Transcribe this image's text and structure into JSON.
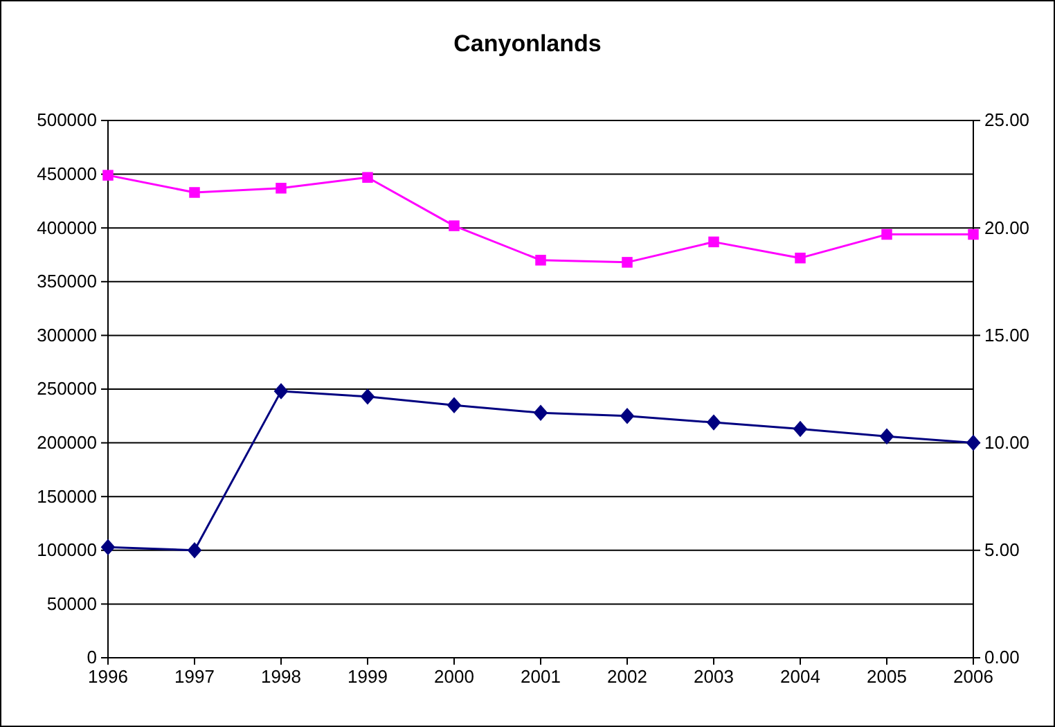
{
  "chart_data": {
    "type": "line",
    "title": "Canyonlands",
    "x": [
      1996,
      1997,
      1998,
      1999,
      2000,
      2001,
      2002,
      2003,
      2004,
      2005,
      2006
    ],
    "xlim": [
      1996,
      2006
    ],
    "xticks": [
      1996,
      1997,
      1998,
      1999,
      2000,
      2001,
      2002,
      2003,
      2004,
      2005,
      2006
    ],
    "ylim": [
      0,
      500000
    ],
    "yticks": [
      0,
      50000,
      100000,
      150000,
      200000,
      250000,
      300000,
      350000,
      400000,
      450000,
      500000
    ],
    "y2lim": [
      0,
      25
    ],
    "y2ticks": [
      {
        "value": 0,
        "label": "0.00"
      },
      {
        "value": 5,
        "label": "5.00"
      },
      {
        "value": 10,
        "label": "10.00"
      },
      {
        "value": 15,
        "label": "15.00"
      },
      {
        "value": 20,
        "label": "20.00"
      },
      {
        "value": 25,
        "label": "25.00"
      }
    ],
    "grid": "y",
    "line_style": "solid",
    "series": [
      {
        "color": "#000080",
        "marker": "diamond",
        "values": [
          103000,
          100000,
          248000,
          243000,
          235000,
          228000,
          225000,
          219000,
          213000,
          206000,
          200000
        ]
      },
      {
        "color": "#ff00ff",
        "marker": "square",
        "axis": "y2",
        "values": [
          22.45,
          21.65,
          21.85,
          22.35,
          20.1,
          18.5,
          18.4,
          19.35,
          18.6,
          19.7,
          19.7
        ]
      }
    ]
  }
}
